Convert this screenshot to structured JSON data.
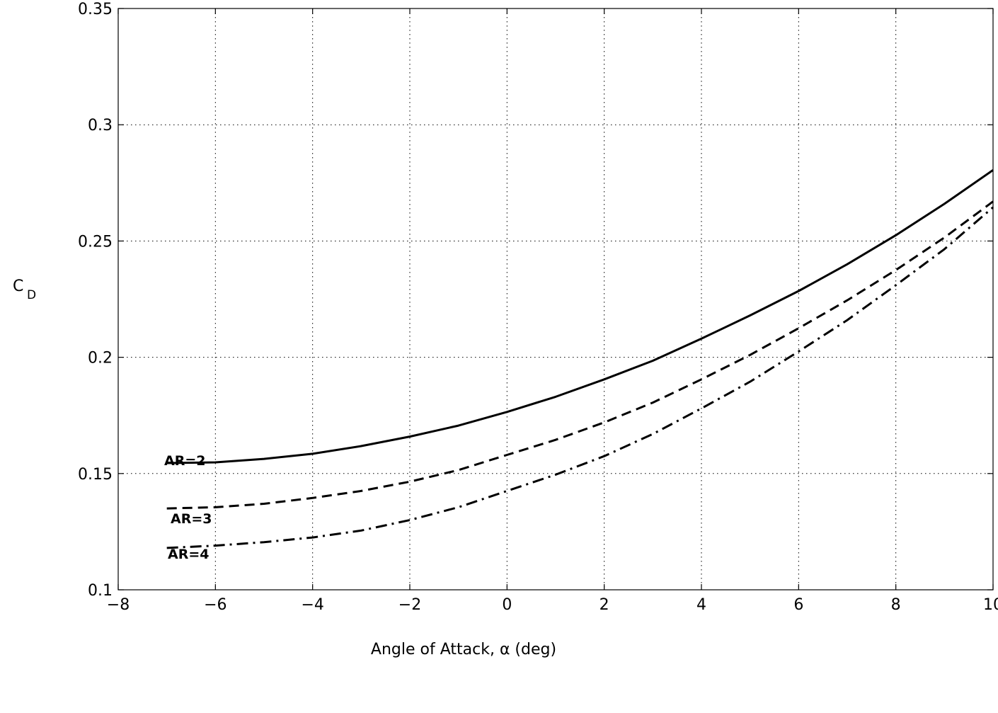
{
  "chart_data": {
    "type": "line",
    "title": "",
    "xlabel": "Angle of Attack, α (deg)",
    "ylabel": "C",
    "ylabel_subscript": "D",
    "xlim": [
      -8,
      10
    ],
    "ylim": [
      0.1,
      0.35
    ],
    "xticks": [
      -8,
      -6,
      -4,
      -2,
      0,
      2,
      4,
      6,
      8,
      10
    ],
    "yticks": [
      0.1,
      0.15,
      0.2,
      0.25,
      0.3,
      0.35
    ],
    "xtick_labels": [
      "−8",
      "−6",
      "−4",
      "−2",
      "0",
      "2",
      "4",
      "6",
      "8",
      "10"
    ],
    "ytick_labels": [
      "0.1",
      "0.15",
      "0.2",
      "0.25",
      "0.3",
      "0.35"
    ],
    "grid": true,
    "x": [
      -7,
      -6,
      -5,
      -4,
      -3,
      -2,
      -1,
      0,
      1,
      2,
      3,
      4,
      5,
      6,
      7,
      8,
      9,
      10
    ],
    "series": [
      {
        "name": "AR=2",
        "line_style": "solid",
        "values": [
          0.1545,
          0.1548,
          0.1563,
          0.1585,
          0.1618,
          0.1659,
          0.1706,
          0.1765,
          0.183,
          0.1905,
          0.1985,
          0.208,
          0.218,
          0.2285,
          0.24,
          0.2525,
          0.266,
          0.2805
        ]
      },
      {
        "name": "AR=3",
        "line_style": "dashed",
        "values": [
          0.135,
          0.1355,
          0.137,
          0.1395,
          0.1425,
          0.1465,
          0.1515,
          0.158,
          0.1645,
          0.172,
          0.1805,
          0.1905,
          0.201,
          0.2125,
          0.2245,
          0.2375,
          0.2515,
          0.267
        ]
      },
      {
        "name": "AR=4",
        "line_style": "dashdot",
        "values": [
          0.118,
          0.119,
          0.1205,
          0.1225,
          0.1255,
          0.13,
          0.1355,
          0.1425,
          0.1495,
          0.1575,
          0.167,
          0.178,
          0.1895,
          0.2025,
          0.216,
          0.231,
          0.2465,
          0.2645
        ]
      }
    ]
  }
}
